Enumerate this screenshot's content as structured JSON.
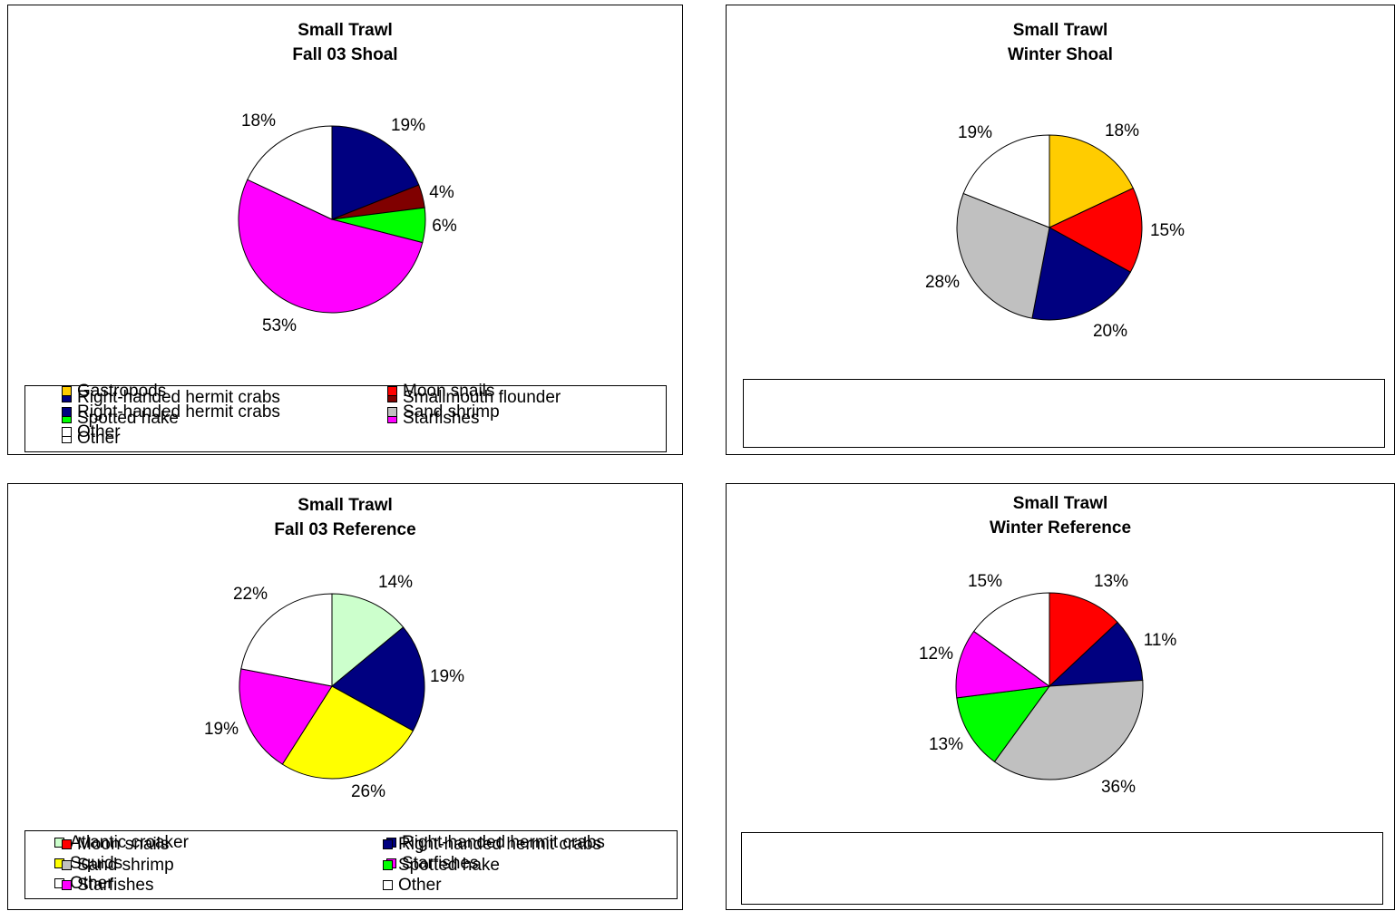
{
  "chart_data": [
    {
      "type": "pie",
      "title": "Small Trawl",
      "subtitle": "Fall 03 Shoal",
      "slices": [
        {
          "name": "Right-handed hermit crabs",
          "value": 19,
          "label": "19%",
          "color": "#000080"
        },
        {
          "name": "Smallmouth flounder",
          "value": 4,
          "label": "4%",
          "color": "#800000"
        },
        {
          "name": "Spotted hake",
          "value": 6,
          "label": "6%",
          "color": "#00FF00"
        },
        {
          "name": "Starfishes",
          "value": 53,
          "label": "53%",
          "color": "#FF00FF"
        },
        {
          "name": "Other",
          "value": 18,
          "label": "18%",
          "color": "#FFFFFF"
        }
      ],
      "legend": "bottom"
    },
    {
      "type": "pie",
      "title": "Small Trawl",
      "subtitle": "Winter Shoal",
      "slices": [
        {
          "name": "Gastropods",
          "value": 18,
          "label": "18%",
          "color": "#FFCC00"
        },
        {
          "name": "Moon snails",
          "value": 15,
          "label": "15%",
          "color": "#FF0000"
        },
        {
          "name": "Right-handed hermit crabs",
          "value": 20,
          "label": "20%",
          "color": "#000080"
        },
        {
          "name": "Sand shrimp",
          "value": 28,
          "label": "28%",
          "color": "#C0C0C0"
        },
        {
          "name": "Other",
          "value": 19,
          "label": "19%",
          "color": "#FFFFFF"
        }
      ],
      "legend": "bottom"
    },
    {
      "type": "pie",
      "title": "Small Trawl",
      "subtitle": "Fall 03 Reference",
      "slices": [
        {
          "name": "Atlantic croaker",
          "value": 14,
          "label": "14%",
          "color": "#CCFFCC"
        },
        {
          "name": "Right-handed hermit crabs",
          "value": 19,
          "label": "19%",
          "color": "#000080"
        },
        {
          "name": "Squids",
          "value": 26,
          "label": "26%",
          "color": "#FFFF00"
        },
        {
          "name": "Starfishes",
          "value": 19,
          "label": "19%",
          "color": "#FF00FF"
        },
        {
          "name": "Other",
          "value": 22,
          "label": "22%",
          "color": "#FFFFFF"
        }
      ],
      "legend": "bottom"
    },
    {
      "type": "pie",
      "title": "Small Trawl",
      "subtitle": "Winter Reference",
      "slices": [
        {
          "name": "Moon snails",
          "value": 13,
          "label": "13%",
          "color": "#FF0000"
        },
        {
          "name": "Right-handed hermit crabs",
          "value": 11,
          "label": "11%",
          "color": "#000080"
        },
        {
          "name": "Sand shrimp",
          "value": 36,
          "label": "36%",
          "color": "#C0C0C0"
        },
        {
          "name": "Spotted hake",
          "value": 13,
          "label": "13%",
          "color": "#00FF00"
        },
        {
          "name": "Starfishes",
          "value": 12,
          "label": "12%",
          "color": "#FF00FF"
        },
        {
          "name": "Other",
          "value": 15,
          "label": "15%",
          "color": "#FFFFFF"
        }
      ],
      "legend": "bottom"
    }
  ]
}
